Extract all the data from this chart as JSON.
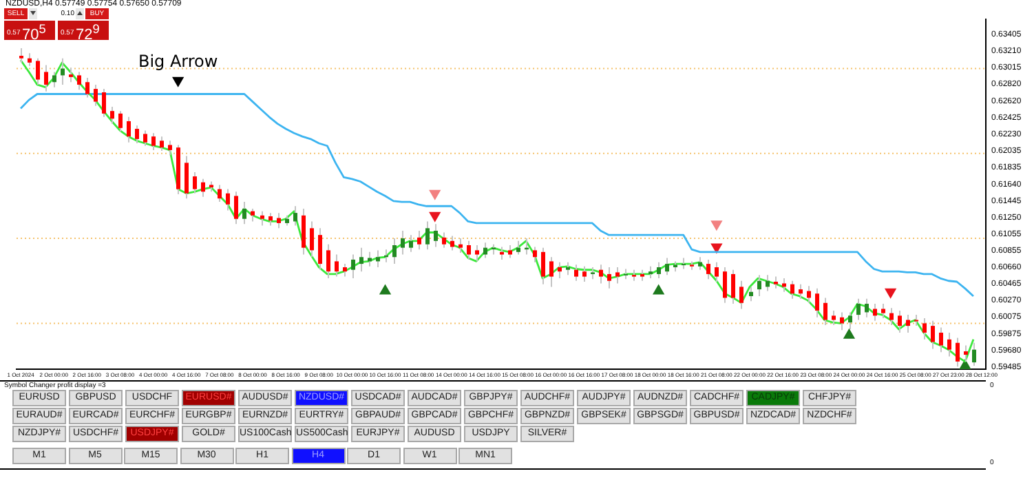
{
  "chart_data": {
    "type": "candlestick",
    "title": "NZDUSD,H4 0.57749 0.57754 0.57650 0.57709",
    "categories": [
      "1 Oct 2024",
      null,
      null,
      null,
      "2 Oct 00:00",
      null,
      null,
      null,
      "2 Oct 16:00",
      null,
      null,
      null,
      "3 Oct 08:00",
      null,
      null,
      null,
      "4 Oct 00:00",
      null,
      null,
      null,
      "4 Oct 16:00",
      null,
      null,
      null,
      "7 Oct 08:00",
      null,
      null,
      null,
      "8 Oct 00:00",
      null,
      null,
      null,
      "8 Oct 16:00",
      null,
      null,
      null,
      "9 Oct 08:00",
      null,
      null,
      null,
      "10 Oct 00:00",
      null,
      null,
      null,
      "10 Oct 16:00",
      null,
      null,
      null,
      "11 Oct 08:00",
      null,
      null,
      null,
      "14 Oct 00:00",
      null,
      null,
      null,
      "14 Oct 16:00",
      null,
      null,
      null,
      "15 Oct 08:00",
      null,
      null,
      null,
      "16 Oct 00:00",
      null,
      null,
      null,
      "16 Oct 16:00",
      null,
      null,
      null,
      "17 Oct 08:00",
      null,
      null,
      null,
      "18 Oct 00:00",
      null,
      null,
      null,
      "18 Oct 16:00",
      null,
      null,
      null,
      "21 Oct 08:00",
      null,
      null,
      null,
      "22 Oct 00:00",
      null,
      null,
      null,
      "22 Oct 16:00",
      null,
      null,
      null,
      "23 Oct 08:00",
      null,
      null,
      null,
      "24 Oct 00:00",
      null,
      null,
      null,
      "24 Oct 16:00",
      null,
      null,
      null,
      "25 Oct 08:00",
      null,
      null,
      null,
      "27 Oct 23:00",
      null,
      null,
      null,
      "28 Oct 12:00"
    ],
    "ohlc": [
      [
        0.6315,
        0.6324,
        0.6307,
        0.6312
      ],
      [
        0.6312,
        0.6318,
        0.6303,
        0.6307
      ],
      [
        0.6309,
        0.6312,
        0.6281,
        0.6287
      ],
      [
        0.6296,
        0.6304,
        0.6273,
        0.6281
      ],
      [
        0.6284,
        0.6296,
        0.6278,
        0.6292
      ],
      [
        0.6292,
        0.6312,
        0.6281,
        0.63
      ],
      [
        0.6293,
        0.6301,
        0.6284,
        0.629
      ],
      [
        0.6292,
        0.6296,
        0.6275,
        0.6281
      ],
      [
        0.6284,
        0.6289,
        0.6266,
        0.627
      ],
      [
        0.6276,
        0.6281,
        0.6256,
        0.6261
      ],
      [
        0.6272,
        0.6276,
        0.6243,
        0.6247
      ],
      [
        0.625,
        0.6255,
        0.6235,
        0.6241
      ],
      [
        0.6247,
        0.625,
        0.6226,
        0.623
      ],
      [
        0.6238,
        0.6243,
        0.6213,
        0.622
      ],
      [
        0.6229,
        0.6233,
        0.6212,
        0.6217
      ],
      [
        0.6223,
        0.6227,
        0.6209,
        0.6213
      ],
      [
        0.622,
        0.6224,
        0.6204,
        0.6209
      ],
      [
        0.6215,
        0.622,
        0.6203,
        0.6207
      ],
      [
        0.621,
        0.6215,
        0.6198,
        0.6204
      ],
      [
        0.6207,
        0.621,
        0.6152,
        0.6158
      ],
      [
        0.6189,
        0.6197,
        0.6147,
        0.6153
      ],
      [
        0.6173,
        0.6178,
        0.6153,
        0.6158
      ],
      [
        0.6166,
        0.617,
        0.6149,
        0.6155
      ],
      [
        0.6163,
        0.6167,
        0.6155,
        0.616
      ],
      [
        0.6158,
        0.6163,
        0.6143,
        0.6147
      ],
      [
        0.6153,
        0.6158,
        0.6133,
        0.614
      ],
      [
        0.615,
        0.6155,
        0.6117,
        0.6123
      ],
      [
        0.6123,
        0.6143,
        0.6117,
        0.6135
      ],
      [
        0.6132,
        0.6135,
        0.612,
        0.6127
      ],
      [
        0.6127,
        0.6132,
        0.6115,
        0.6123
      ],
      [
        0.6126,
        0.613,
        0.6115,
        0.6121
      ],
      [
        0.6124,
        0.613,
        0.6112,
        0.6118
      ],
      [
        0.6118,
        0.6127,
        0.6115,
        0.6123
      ],
      [
        0.612,
        0.6138,
        0.6115,
        0.613
      ],
      [
        0.6127,
        0.6135,
        0.6081,
        0.6089
      ],
      [
        0.6112,
        0.612,
        0.6078,
        0.6086
      ],
      [
        0.6104,
        0.6112,
        0.6063,
        0.607
      ],
      [
        0.6086,
        0.6093,
        0.6053,
        0.6061
      ],
      [
        0.6073,
        0.6081,
        0.6055,
        0.6061
      ],
      [
        0.6066,
        0.607,
        0.6055,
        0.6061
      ],
      [
        0.6063,
        0.6081,
        0.6053,
        0.6075
      ],
      [
        0.607,
        0.6089,
        0.6061,
        0.6078
      ],
      [
        0.6073,
        0.6084,
        0.6067,
        0.6077
      ],
      [
        0.6073,
        0.6086,
        0.6066,
        0.6078
      ],
      [
        0.6078,
        0.6087,
        0.6072,
        0.608
      ],
      [
        0.6078,
        0.61,
        0.607,
        0.6092
      ],
      [
        0.6089,
        0.6109,
        0.6081,
        0.61
      ],
      [
        0.6089,
        0.6104,
        0.6084,
        0.6097
      ],
      [
        0.6101,
        0.6109,
        0.6087,
        0.6093
      ],
      [
        0.6093,
        0.612,
        0.6087,
        0.6112
      ],
      [
        0.6097,
        0.6117,
        0.609,
        0.6109
      ],
      [
        0.6101,
        0.6107,
        0.6089,
        0.6093
      ],
      [
        0.6097,
        0.6103,
        0.6086,
        0.609
      ],
      [
        0.6093,
        0.61,
        0.6083,
        0.6089
      ],
      [
        0.6092,
        0.6097,
        0.6075,
        0.6081
      ],
      [
        0.6086,
        0.6092,
        0.6073,
        0.6081
      ],
      [
        0.6081,
        0.6095,
        0.6077,
        0.6089
      ],
      [
        0.6087,
        0.6093,
        0.6081,
        0.6089
      ],
      [
        0.6084,
        0.609,
        0.6075,
        0.6081
      ],
      [
        0.6086,
        0.6092,
        0.6077,
        0.6081
      ],
      [
        0.6084,
        0.6097,
        0.6081,
        0.6089
      ],
      [
        0.6087,
        0.61,
        0.6081,
        0.6089
      ],
      [
        0.6086,
        0.609,
        0.6072,
        0.6078
      ],
      [
        0.6084,
        0.6089,
        0.6046,
        0.6055
      ],
      [
        0.6073,
        0.6078,
        0.6043,
        0.6055
      ],
      [
        0.6066,
        0.6072,
        0.6053,
        0.6061
      ],
      [
        0.6063,
        0.6072,
        0.6057,
        0.6066
      ],
      [
        0.6063,
        0.6069,
        0.605,
        0.6055
      ],
      [
        0.6061,
        0.6067,
        0.6049,
        0.6055
      ],
      [
        0.6058,
        0.6066,
        0.6052,
        0.606
      ],
      [
        0.6063,
        0.6069,
        0.6047,
        0.6055
      ],
      [
        0.6058,
        0.6066,
        0.6041,
        0.605
      ],
      [
        0.606,
        0.6066,
        0.6047,
        0.6055
      ],
      [
        0.6057,
        0.6064,
        0.6052,
        0.6058
      ],
      [
        0.6057,
        0.6063,
        0.605,
        0.6055
      ],
      [
        0.6058,
        0.6063,
        0.605,
        0.6055
      ],
      [
        0.6058,
        0.6067,
        0.6053,
        0.6061
      ],
      [
        0.6058,
        0.6072,
        0.6053,
        0.6066
      ],
      [
        0.6061,
        0.6077,
        0.6057,
        0.607
      ],
      [
        0.6066,
        0.6073,
        0.6061,
        0.6069
      ],
      [
        0.6069,
        0.6077,
        0.6064,
        0.607
      ],
      [
        0.6069,
        0.6073,
        0.6063,
        0.6067
      ],
      [
        0.6067,
        0.6078,
        0.6063,
        0.6072
      ],
      [
        0.607,
        0.6075,
        0.6052,
        0.6058
      ],
      [
        0.6066,
        0.6072,
        0.6049,
        0.6055
      ],
      [
        0.6061,
        0.6066,
        0.6024,
        0.603
      ],
      [
        0.6058,
        0.6063,
        0.6023,
        0.603
      ],
      [
        0.6043,
        0.605,
        0.6017,
        0.6024
      ],
      [
        0.6032,
        0.6043,
        0.6026,
        0.6037
      ],
      [
        0.604,
        0.6057,
        0.6032,
        0.605
      ],
      [
        0.6043,
        0.6057,
        0.6038,
        0.605
      ],
      [
        0.6049,
        0.6055,
        0.6041,
        0.6046
      ],
      [
        0.6047,
        0.6053,
        0.6037,
        0.6043
      ],
      [
        0.6046,
        0.605,
        0.6029,
        0.6035
      ],
      [
        0.604,
        0.6046,
        0.6029,
        0.6035
      ],
      [
        0.6038,
        0.6044,
        0.6024,
        0.603
      ],
      [
        0.6035,
        0.6041,
        0.6007,
        0.6015
      ],
      [
        0.6024,
        0.603,
        0.5998,
        0.6004
      ],
      [
        0.6009,
        0.6015,
        0.5998,
        0.6004
      ],
      [
        0.6007,
        0.6013,
        0.5992,
        0.6
      ],
      [
        0.6001,
        0.6013,
        0.5993,
        0.6009
      ],
      [
        0.601,
        0.6029,
        0.6004,
        0.6023
      ],
      [
        0.6013,
        0.6029,
        0.6007,
        0.6023
      ],
      [
        0.6017,
        0.6023,
        0.6003,
        0.6009
      ],
      [
        0.6017,
        0.6023,
        0.6006,
        0.6012
      ],
      [
        0.6012,
        0.6018,
        0.5998,
        0.6004
      ],
      [
        0.6009,
        0.6015,
        0.5989,
        0.5997
      ],
      [
        0.6004,
        0.601,
        0.5989,
        0.5997
      ],
      [
        0.6004,
        0.601,
        0.5997,
        0.6003
      ],
      [
        0.6,
        0.6006,
        0.5981,
        0.5989
      ],
      [
        0.5997,
        0.6003,
        0.597,
        0.5978
      ],
      [
        0.5989,
        0.5995,
        0.5966,
        0.5974
      ],
      [
        0.5981,
        0.5989,
        0.5961,
        0.5969
      ],
      [
        0.5977,
        0.5983,
        0.5949,
        0.5955
      ],
      [
        0.5967,
        0.5974,
        0.5955,
        0.5963
      ],
      [
        0.5954,
        0.5977,
        0.595,
        0.5969
      ],
      null
    ],
    "colors": [
      "#ff0000",
      "#ff0000",
      "#ff0000",
      "#ff0000",
      "#228b22",
      "#228b22",
      "#ff0000",
      "#ff0000",
      "#ff0000",
      "#ff0000",
      "#ff0000",
      "#ff0000",
      "#ff0000",
      "#ff0000",
      "#ff0000",
      "#ff0000",
      "#ff0000",
      "#ff0000",
      "#ff0000",
      "#ff0000",
      "#ff0000",
      "#ff0000",
      "#ff0000",
      "#ff0000",
      "#ff0000",
      "#ff0000",
      "#ff0000",
      "#228b22",
      "#ff0000",
      "#ff0000",
      "#ff0000",
      "#ff0000",
      "#228b22",
      "#228b22",
      "#ff0000",
      "#ff0000",
      "#ff0000",
      "#ff0000",
      "#ff0000",
      "#ff0000",
      "#228b22",
      "#228b22",
      "#228b22",
      "#228b22",
      "#228b22",
      "#228b22",
      "#228b22",
      "#228b22",
      "#ff0000",
      "#228b22",
      "#228b22",
      "#ff0000",
      "#ff0000",
      "#ff0000",
      "#ff0000",
      "#ff0000",
      "#228b22",
      "#228b22",
      "#ff0000",
      "#ff0000",
      "#228b22",
      "#228b22",
      "#ff0000",
      "#ff0000",
      "#ff0000",
      "#ff0000",
      "#228b22",
      "#ff0000",
      "#ff0000",
      "#228b22",
      "#ff0000",
      "#ff0000",
      "#ff0000",
      "#228b22",
      "#ff0000",
      "#ff0000",
      "#228b22",
      "#228b22",
      "#228b22",
      "#228b22",
      "#228b22",
      "#ff0000",
      "#228b22",
      "#ff0000",
      "#ff0000",
      "#ff0000",
      "#ff0000",
      "#ff0000",
      "#228b22",
      "#228b22",
      "#228b22",
      "#ff0000",
      "#ff0000",
      "#ff0000",
      "#ff0000",
      "#ff0000",
      "#ff0000",
      "#ff0000",
      "#ff0000",
      "#ff0000",
      "#228b22",
      "#228b22",
      "#228b22",
      "#ff0000",
      "#ff0000",
      "#ff0000",
      "#ff0000",
      "#ff0000",
      "#ff0000",
      "#ff0000",
      "#ff0000",
      "#ff0000",
      "#ff0000",
      "#ff0000",
      "#ff0000",
      "#228b22",
      null
    ],
    "series": [
      {
        "type": "line",
        "color": "#3ce83c",
        "marker": "none",
        "values": [
          0.631,
          0.6296,
          0.6281,
          0.6278,
          0.6289,
          0.6307,
          0.6296,
          0.6284,
          0.6273,
          0.6263,
          0.625,
          0.6238,
          0.6227,
          0.622,
          0.6215,
          0.6212,
          0.6209,
          0.6207,
          0.6204,
          0.6158,
          0.6153,
          0.6155,
          0.6158,
          0.616,
          0.615,
          0.614,
          0.6123,
          0.6135,
          0.6127,
          0.6123,
          0.612,
          0.612,
          0.6123,
          0.6132,
          0.6097,
          0.6081,
          0.6066,
          0.6058,
          0.6058,
          0.6061,
          0.6066,
          0.6072,
          0.6073,
          0.6077,
          0.6078,
          0.6087,
          0.6093,
          0.6097,
          0.6097,
          0.6107,
          0.6107,
          0.61,
          0.6093,
          0.6089,
          0.6077,
          0.6073,
          0.6084,
          0.6089,
          0.6086,
          0.6084,
          0.6089,
          0.6097,
          0.6081,
          0.6053,
          0.6058,
          0.6066,
          0.6067,
          0.6064,
          0.6063,
          0.6063,
          0.606,
          0.6053,
          0.6055,
          0.6058,
          0.6058,
          0.6058,
          0.6058,
          0.6063,
          0.6069,
          0.607,
          0.607,
          0.607,
          0.6072,
          0.6061,
          0.605,
          0.6035,
          0.603,
          0.6024,
          0.6043,
          0.6053,
          0.605,
          0.6047,
          0.6043,
          0.6035,
          0.6032,
          0.6027,
          0.6017,
          0.6004,
          0.6001,
          0.6,
          0.6007,
          0.6023,
          0.602,
          0.6012,
          0.601,
          0.6004,
          0.5993,
          0.6,
          0.6004,
          0.5989,
          0.5978,
          0.5974,
          0.5969,
          0.5961,
          0.5955,
          0.5981,
          null
        ]
      },
      {
        "type": "line",
        "color": "#3cb4f0",
        "marker": "none",
        "values": [
          0.6253,
          0.6263,
          0.627,
          0.627,
          0.627,
          0.627,
          0.627,
          0.627,
          0.627,
          0.627,
          0.627,
          0.627,
          0.627,
          0.627,
          0.627,
          0.627,
          0.627,
          0.627,
          0.627,
          0.627,
          0.627,
          0.627,
          0.627,
          0.627,
          0.627,
          0.627,
          0.627,
          0.627,
          0.6261,
          0.6252,
          0.6243,
          0.6235,
          0.6229,
          0.6224,
          0.622,
          0.6217,
          0.6212,
          0.6209,
          0.6189,
          0.6172,
          0.617,
          0.6167,
          0.6161,
          0.6155,
          0.615,
          0.6144,
          0.6143,
          0.6143,
          0.614,
          0.6138,
          0.6138,
          0.6138,
          0.6138,
          0.613,
          0.612,
          0.6118,
          0.6118,
          0.6118,
          0.6118,
          0.6118,
          0.6118,
          0.6118,
          0.6118,
          0.6118,
          0.6118,
          0.6118,
          0.6118,
          0.6118,
          0.6118,
          0.6118,
          0.6109,
          0.6104,
          0.6104,
          0.6104,
          0.6104,
          0.6104,
          0.6104,
          0.6104,
          0.6104,
          0.6104,
          0.6104,
          0.6087,
          0.6084,
          0.6084,
          0.6084,
          0.6084,
          0.6084,
          0.6084,
          0.6084,
          0.6084,
          0.6084,
          0.6084,
          0.6084,
          0.6084,
          0.6084,
          0.6084,
          0.6084,
          0.6084,
          0.6084,
          0.6084,
          0.6084,
          0.6084,
          0.6073,
          0.6064,
          0.6061,
          0.6061,
          0.6061,
          0.606,
          0.606,
          0.6058,
          0.6058,
          0.6053,
          0.605,
          0.6049,
          0.6041,
          0.6032,
          null
        ]
      },
      {
        "type": "scatter",
        "color": "#000000",
        "marker": "triangle",
        "values": [
          null,
          null,
          null,
          null,
          null,
          null,
          null,
          null,
          null,
          null,
          null,
          null,
          null,
          null,
          null,
          null,
          null,
          null,
          null,
          0.6286,
          null,
          null,
          null,
          null,
          null,
          null,
          null,
          null,
          null,
          null,
          null,
          null,
          null,
          null,
          null,
          null,
          null,
          null,
          null,
          null,
          null,
          null,
          null,
          null,
          null,
          null,
          null,
          null,
          null,
          null,
          null,
          null,
          null,
          null,
          null,
          null,
          null,
          null,
          null,
          null,
          null,
          null,
          null,
          null,
          null,
          null,
          null,
          null,
          null,
          null,
          null,
          null,
          null,
          null,
          null,
          null,
          null,
          null,
          null,
          null,
          null,
          null,
          null,
          null,
          null,
          null,
          null,
          null,
          null,
          null,
          null,
          null,
          null,
          null,
          null,
          null,
          null,
          null,
          null,
          null,
          null,
          null,
          null,
          null,
          null,
          null,
          null,
          null,
          null,
          null,
          null,
          null,
          null,
          null,
          null,
          null,
          null
        ]
      },
      {
        "type": "scatter",
        "color": "#e8141e",
        "marker": "triangle",
        "values": [
          null,
          null,
          null,
          null,
          null,
          null,
          null,
          null,
          null,
          null,
          null,
          null,
          null,
          null,
          null,
          null,
          null,
          null,
          null,
          null,
          null,
          null,
          null,
          null,
          null,
          null,
          null,
          null,
          null,
          null,
          null,
          null,
          null,
          null,
          null,
          null,
          null,
          null,
          null,
          null,
          null,
          null,
          null,
          null,
          null,
          null,
          null,
          null,
          null,
          null,
          0.6127,
          null,
          null,
          null,
          null,
          null,
          null,
          null,
          null,
          null,
          null,
          null,
          null,
          null,
          null,
          null,
          null,
          null,
          null,
          null,
          null,
          null,
          null,
          null,
          null,
          null,
          null,
          null,
          null,
          null,
          null,
          null,
          null,
          null,
          0.609,
          null,
          null,
          null,
          null,
          null,
          null,
          null,
          null,
          null,
          null,
          null,
          null,
          null,
          null,
          null,
          null,
          null,
          null,
          null,
          null,
          0.6037,
          null,
          null,
          null,
          null,
          null,
          null,
          null,
          null,
          null,
          null,
          null
        ]
      },
      {
        "type": "scatter",
        "color": "#f28080",
        "marker": "triangle",
        "values": [
          null,
          null,
          null,
          null,
          null,
          null,
          null,
          null,
          null,
          null,
          null,
          null,
          null,
          null,
          null,
          null,
          null,
          null,
          null,
          null,
          null,
          null,
          null,
          null,
          null,
          null,
          null,
          null,
          null,
          null,
          null,
          null,
          null,
          null,
          null,
          null,
          null,
          null,
          null,
          null,
          null,
          null,
          null,
          null,
          null,
          null,
          null,
          null,
          null,
          null,
          0.6153,
          null,
          null,
          null,
          null,
          null,
          null,
          null,
          null,
          null,
          null,
          null,
          null,
          null,
          null,
          null,
          null,
          null,
          null,
          null,
          null,
          null,
          null,
          null,
          null,
          null,
          null,
          null,
          null,
          null,
          null,
          null,
          null,
          null,
          0.6117,
          null,
          null,
          null,
          null,
          null,
          null,
          null,
          null,
          null,
          null,
          null,
          null,
          null,
          null,
          null,
          null,
          null,
          null,
          null,
          null,
          null,
          null,
          null,
          null,
          null,
          null,
          null,
          null,
          null,
          null,
          null,
          null
        ]
      },
      {
        "type": "scatter",
        "color": "#1e7a1e",
        "marker": "triangle",
        "values": [
          null,
          null,
          null,
          null,
          null,
          null,
          null,
          null,
          null,
          null,
          null,
          null,
          null,
          null,
          null,
          null,
          null,
          null,
          null,
          null,
          null,
          null,
          null,
          null,
          null,
          null,
          null,
          null,
          null,
          null,
          null,
          null,
          null,
          null,
          null,
          null,
          null,
          null,
          null,
          null,
          null,
          null,
          null,
          null,
          0.6038,
          null,
          null,
          null,
          null,
          null,
          null,
          null,
          null,
          null,
          null,
          null,
          null,
          null,
          null,
          null,
          null,
          null,
          null,
          null,
          null,
          null,
          null,
          null,
          null,
          null,
          null,
          null,
          null,
          null,
          null,
          null,
          null,
          0.6038,
          null,
          null,
          null,
          null,
          null,
          null,
          null,
          null,
          null,
          null,
          null,
          null,
          null,
          null,
          null,
          null,
          null,
          null,
          null,
          null,
          null,
          null,
          0.5986,
          null,
          null,
          null,
          null,
          null,
          null,
          null,
          null,
          null,
          null,
          null,
          null,
          null,
          0.595,
          null,
          null
        ]
      }
    ],
    "ylim": [
      0.5946,
      0.6358
    ],
    "yticks": [
      {
        "value": 0.63405,
        "label": "0.63405"
      },
      {
        "value": 0.6321,
        "label": "0.63210"
      },
      {
        "value": 0.63015,
        "label": "0.63015"
      },
      {
        "value": 0.6282,
        "label": "0.62820"
      },
      {
        "value": 0.6262,
        "label": "0.62620"
      },
      {
        "value": 0.62425,
        "label": "0.62425"
      },
      {
        "value": 0.6223,
        "label": "0.62230"
      },
      {
        "value": 0.62035,
        "label": "0.62035"
      },
      {
        "value": 0.61835,
        "label": "0.61835"
      },
      {
        "value": 0.6164,
        "label": "0.61640"
      },
      {
        "value": 0.61445,
        "label": "0.61445"
      },
      {
        "value": 0.6125,
        "label": "0.61250"
      },
      {
        "value": 0.61055,
        "label": "0.61055"
      },
      {
        "value": 0.60855,
        "label": "0.60855"
      },
      {
        "value": 0.6066,
        "label": "0.60660"
      },
      {
        "value": 0.60465,
        "label": "0.60465"
      },
      {
        "value": 0.6027,
        "label": "0.60270"
      },
      {
        "value": 0.60075,
        "label": "0.60075"
      },
      {
        "value": 0.59875,
        "label": "0.59875"
      },
      {
        "value": 0.5968,
        "label": "0.59680"
      },
      {
        "value": 0.59485,
        "label": "0.59485"
      }
    ],
    "ref_lines": [
      {
        "axis": "y",
        "value": 0.63,
        "color": "#f5c26b",
        "line_style": "dotted"
      },
      {
        "axis": "y",
        "value": 0.62,
        "color": "#f5c26b",
        "line_style": "dotted"
      },
      {
        "axis": "y",
        "value": 0.61,
        "color": "#f5c26b",
        "line_style": "dotted"
      },
      {
        "axis": "y",
        "value": 0.6,
        "color": "#f5c26b",
        "line_style": "dotted"
      }
    ],
    "annotations": [
      "Big Arrow",
      "SELL",
      "0.10",
      "BUY",
      "0.57",
      "70$^{5}$",
      "0.57",
      "72$^{9}$",
      "Symbol Changer profit display =3",
      "EURUSD",
      "GBPUSD",
      "USDCHF",
      "EURUSD#",
      "AUDUSD#",
      "NZDUSD#",
      "USDCAD#",
      "AUDCAD#",
      "GBPJPY#",
      "AUDCHF#",
      "AUDJPY#",
      "AUDNZD#",
      "CADCHF#",
      "CADJPY#",
      "CHFJPY#",
      "EURAUD#",
      "EURCAD#",
      "EURCHF#",
      "EURGBP#",
      "EURNZD#",
      "EURTRY#",
      "GBPAUD#",
      "GBPCAD#",
      "GBPCHF#",
      "GBPNZD#",
      "GBPSEK#",
      "GBPSGD#",
      "GBPUSD#",
      "NZDCAD#",
      "NZDCHF#",
      "NZDJPY#",
      "USDCHF#",
      "USDJPY#",
      "GOLD#",
      "US100Cash",
      "US500Cash",
      "EURJPY#",
      "AUDUSD",
      "USDJPY",
      "SILVER#",
      "M1",
      "M5",
      "M15",
      "M30",
      "H1",
      "H4",
      "D1",
      "W1",
      "MN1",
      "0",
      "0"
    ]
  }
}
